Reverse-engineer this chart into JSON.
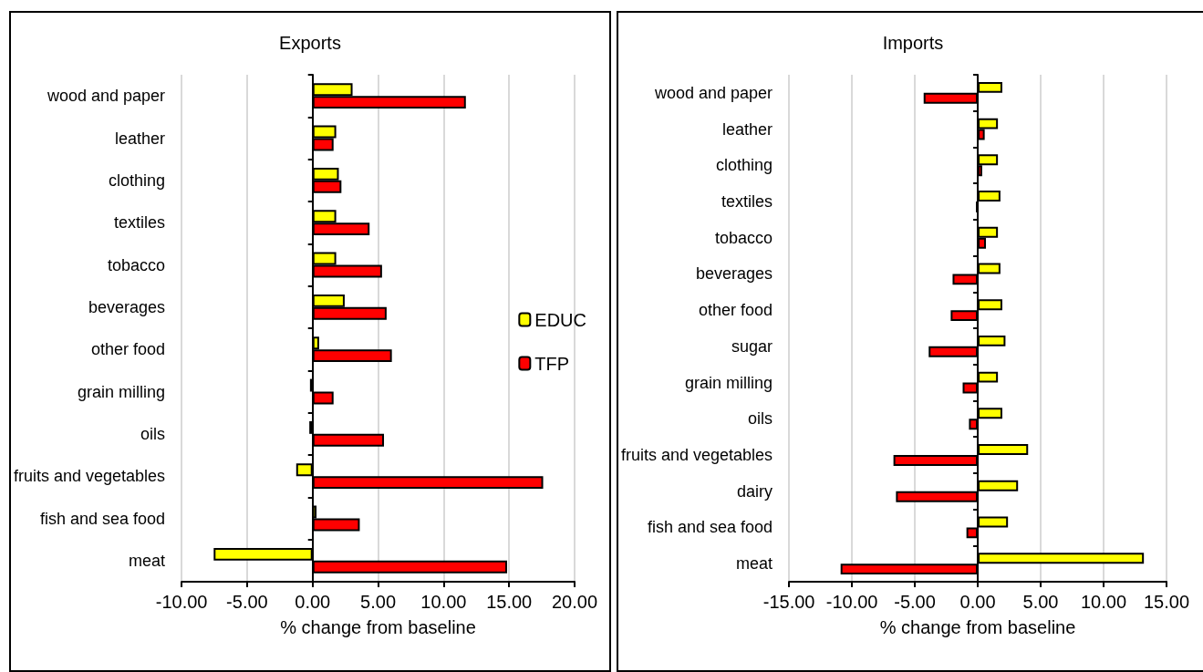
{
  "chart_data": [
    {
      "type": "bar",
      "orientation": "horizontal",
      "title": "Exports",
      "xlabel": "% change from baseline",
      "categories": [
        "wood and paper",
        "leather",
        "clothing",
        "textiles",
        "tobacco",
        "beverages",
        "other food",
        "grain milling",
        "oils",
        "fruits and vegetables",
        "fish and sea food",
        "meat"
      ],
      "series": [
        {
          "name": "EDUC",
          "color": "#ffff00",
          "values": [
            3.05,
            1.8,
            2.0,
            1.8,
            1.8,
            2.45,
            0.5,
            -0.2,
            -0.25,
            -1.25,
            0.3,
            -7.55
          ]
        },
        {
          "name": "TFP",
          "color": "#ff0000",
          "values": [
            11.7,
            1.6,
            2.2,
            4.35,
            5.3,
            5.65,
            6.05,
            1.6,
            5.45,
            17.6,
            3.6,
            14.85
          ]
        }
      ],
      "xlim": [
        -10,
        20
      ],
      "xticks": [
        {
          "value": -10,
          "label": "-10.00"
        },
        {
          "value": -5,
          "label": "-5.00"
        },
        {
          "value": 0,
          "label": "0.00"
        },
        {
          "value": 5,
          "label": "5.00"
        },
        {
          "value": 10,
          "label": "10.00"
        },
        {
          "value": 15,
          "label": "15.00"
        },
        {
          "value": 20,
          "label": "20.00"
        }
      ],
      "grid": "x",
      "legend": "right"
    },
    {
      "type": "bar",
      "orientation": "horizontal",
      "title": "Imports",
      "xlabel": "% change from baseline",
      "categories": [
        "wood and paper",
        "leather",
        "clothing",
        "textiles",
        "tobacco",
        "beverages",
        "other food",
        "sugar",
        "grain milling",
        "oils",
        "fruits and vegetables",
        "dairy",
        "fish and sea food",
        "meat"
      ],
      "series": [
        {
          "color": "#ffff00",
          "values": [
            1.95,
            1.6,
            1.6,
            1.8,
            1.6,
            1.8,
            1.95,
            2.2,
            1.6,
            1.95,
            4.0,
            3.2,
            2.4,
            13.2
          ]
        },
        {
          "color": "#ff0000",
          "values": [
            -4.3,
            0.55,
            0.35,
            -0.15,
            0.65,
            -2.0,
            -2.15,
            -3.9,
            -1.2,
            -0.7,
            -6.7,
            -6.5,
            -0.9,
            -10.9
          ]
        }
      ],
      "xlim": [
        -15,
        15
      ],
      "xticks": [
        {
          "value": -15,
          "label": "-15.00"
        },
        {
          "value": -10,
          "label": "-10.00"
        },
        {
          "value": -5,
          "label": "-5.00"
        },
        {
          "value": 0,
          "label": "0.00"
        },
        {
          "value": 5,
          "label": "5.00"
        },
        {
          "value": 10,
          "label": "10.00"
        },
        {
          "value": 15,
          "label": "15.00"
        }
      ],
      "grid": "x"
    }
  ]
}
